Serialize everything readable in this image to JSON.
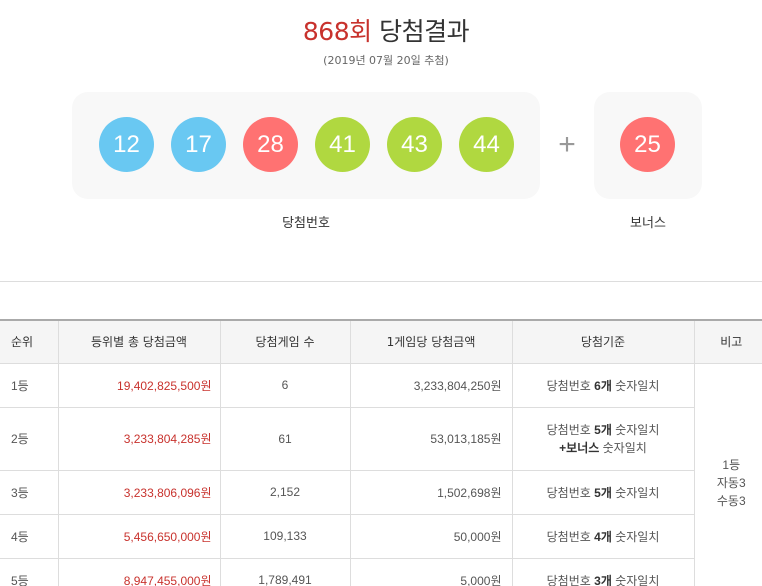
{
  "header": {
    "round": "868회",
    "title": "당첨결과",
    "date": "(2019년 07월 20일 추첨)"
  },
  "numbers": [
    {
      "value": "12",
      "color": "#69c8f2"
    },
    {
      "value": "17",
      "color": "#69c8f2"
    },
    {
      "value": "28",
      "color": "#ff7272"
    },
    {
      "value": "41",
      "color": "#b0d840"
    },
    {
      "value": "43",
      "color": "#b0d840"
    },
    {
      "value": "44",
      "color": "#b0d840"
    }
  ],
  "plus": "+",
  "bonus": {
    "value": "25",
    "color": "#ff7272"
  },
  "labels": {
    "winning": "당첨번호",
    "bonus": "보너스"
  },
  "table": {
    "headers": [
      "순위",
      "등위별 총 당첨금액",
      "당첨게임 수",
      "1게임당 당첨금액",
      "당첨기준",
      "비고"
    ],
    "rows": [
      {
        "rank": "1등",
        "total": "19,402,825,500원",
        "games": "6",
        "per_game": "3,233,804,250원",
        "crit_a": "당첨번호 ",
        "crit_b": "6개",
        "crit_c": " 숫자일치",
        "crit2": ""
      },
      {
        "rank": "2등",
        "total": "3,233,804,285원",
        "games": "61",
        "per_game": "53,013,185원",
        "crit_a": "당첨번호 ",
        "crit_b": "5개",
        "crit_c": " 숫자일치",
        "crit2_a": "+보너스",
        "crit2_b": " 숫자일치"
      },
      {
        "rank": "3등",
        "total": "3,233,806,096원",
        "games": "2,152",
        "per_game": "1,502,698원",
        "crit_a": "당첨번호 ",
        "crit_b": "5개",
        "crit_c": " 숫자일치"
      },
      {
        "rank": "4등",
        "total": "5,456,650,000원",
        "games": "109,133",
        "per_game": "50,000원",
        "crit_a": "당첨번호 ",
        "crit_b": "4개",
        "crit_c": " 숫자일치"
      },
      {
        "rank": "5등",
        "total": "8,947,455,000원",
        "games": "1,789,491",
        "per_game": "5,000원",
        "crit_a": "당첨번호 ",
        "crit_b": "3개",
        "crit_c": " 숫자일치"
      }
    ],
    "note": [
      "1등",
      "자동3",
      "수동3"
    ]
  }
}
